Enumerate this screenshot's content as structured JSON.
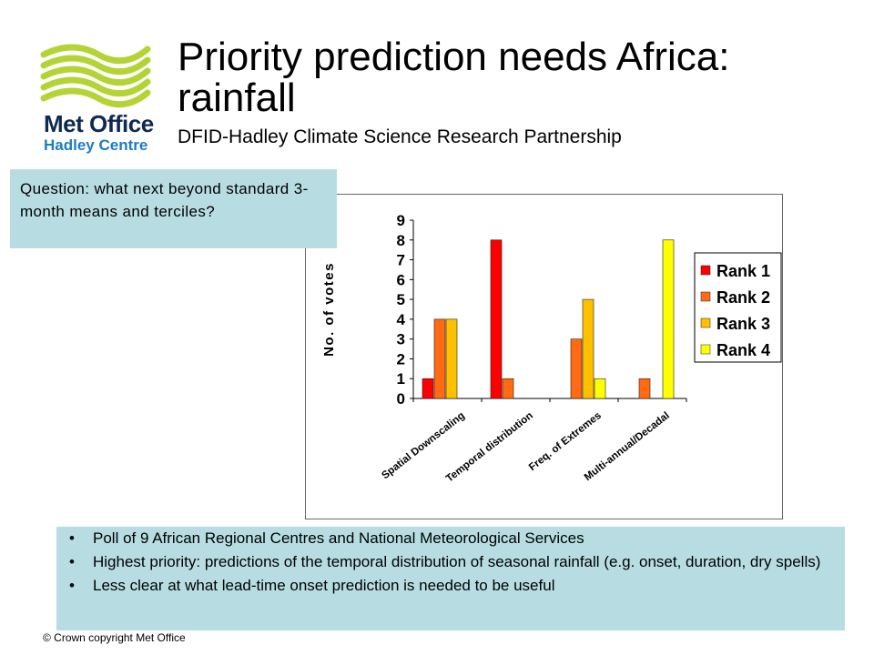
{
  "logo": {
    "name": "Met Office",
    "sub": "Hadley Centre",
    "color_green": "#b5d334",
    "color_navy": "#0f2a52",
    "color_blue": "#1d7cc4"
  },
  "title": "Priority prediction needs Africa: rainfall",
  "subtitle": "DFID-Hadley Climate Science Research Partnership",
  "question": "Question: what next beyond standard 3-month means and terciles?",
  "bullets": [
    "Poll of 9 African Regional Centres and National Meteorological Services",
    "Highest priority: predictions of the temporal distribution of seasonal rainfall (e.g. onset, duration, dry spells)",
    "Less clear at what lead-time onset prediction is needed to be useful"
  ],
  "copyright": "© Crown copyright   Met Office",
  "panel_color": "#b7dde2",
  "chart_data": {
    "type": "bar",
    "title": "",
    "xlabel": "",
    "ylabel": "No. of votes",
    "ylim": [
      0,
      9
    ],
    "yticks": [
      0,
      1,
      2,
      3,
      4,
      5,
      6,
      7,
      8,
      9
    ],
    "grid": false,
    "legend_position": "right",
    "categories": [
      "Spatial Downscaling",
      "Temporal distribution",
      "Freq. of Extremes",
      "Multi-annual/Decadal"
    ],
    "series": [
      {
        "name": "Rank 1",
        "color": "#ff0000",
        "values": [
          1,
          8,
          0,
          0
        ]
      },
      {
        "name": "Rank 2",
        "color": "#ff6a13",
        "values": [
          4,
          1,
          3,
          1
        ]
      },
      {
        "name": "Rank 3",
        "color": "#ffc000",
        "values": [
          4,
          0,
          5,
          0
        ]
      },
      {
        "name": "Rank 4",
        "color": "#ffff00",
        "values": [
          0,
          0,
          1,
          8
        ]
      }
    ]
  }
}
